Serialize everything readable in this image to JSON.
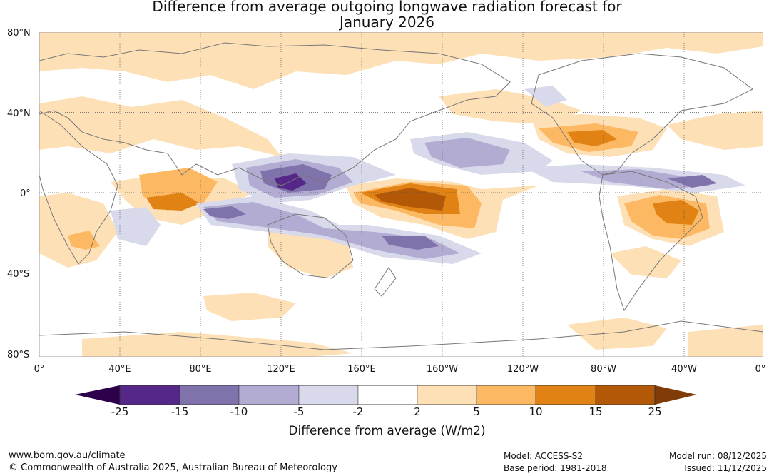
{
  "title_lines": [
    "Difference from average outgoing longwave radiation forecast for",
    "January 2026"
  ],
  "lat_labels": [
    "80°N",
    "40°N",
    "0°",
    "40°S",
    "80°S"
  ],
  "lon_labels": [
    "0°",
    "40°E",
    "80°E",
    "120°E",
    "160°E",
    "160°W",
    "120°W",
    "80°W",
    "40°W",
    "0°"
  ],
  "colorbar": {
    "ticks": [
      "-25",
      "-15",
      "-10",
      "-5",
      "-2",
      "2",
      "5",
      "10",
      "15",
      "25"
    ],
    "label": "Difference from average (W/m2)",
    "colors": [
      "#2d004b",
      "#542788",
      "#8073ac",
      "#b2abd2",
      "#d8daeb",
      "#ffffff",
      "#fee0b6",
      "#fdb863",
      "#e08214",
      "#b35806",
      "#7f3b08"
    ]
  },
  "footer": {
    "website": "www.bom.gov.au/climate",
    "copyright": "© Commonwealth of Australia 2025, Australian Bureau of Meteorology",
    "model": "Model: ACCESS-S2",
    "base_period": "Base period: 1981-2018",
    "model_run": "Model run: 08/12/2025",
    "issued": "Issued: 11/12/2025"
  }
}
